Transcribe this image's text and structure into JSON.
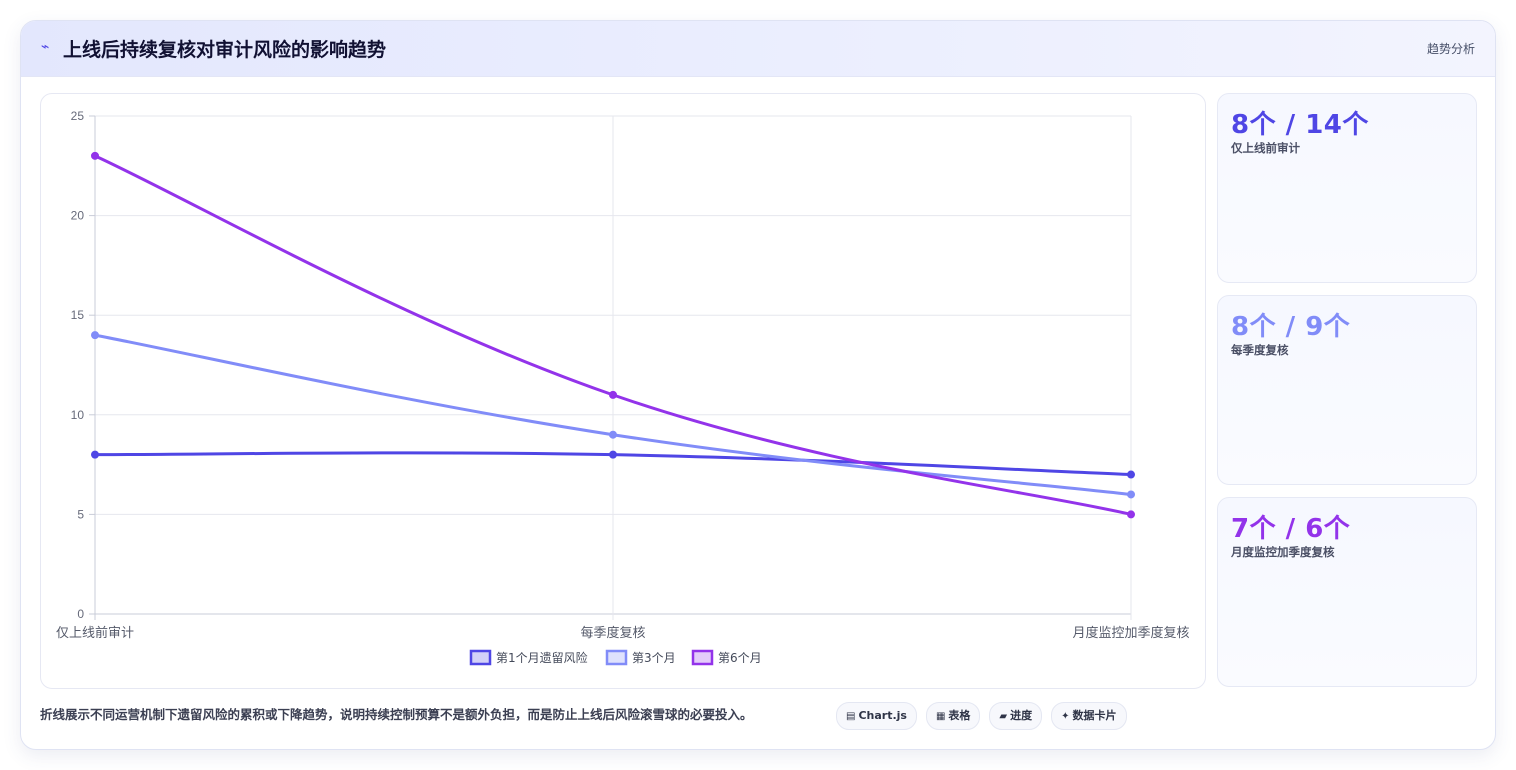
{
  "header": {
    "icon": "pulse-icon",
    "title": "上线后持续复核对审计风险的影响趋势",
    "tag": "趋势分析"
  },
  "chart_data": {
    "type": "line",
    "categories": [
      "仅上线前审计",
      "每季度复核",
      "月度监控加季度复核"
    ],
    "series": [
      {
        "name": "第1个月遗留风险",
        "values": [
          8,
          8,
          7
        ],
        "color": "#4f46e5"
      },
      {
        "name": "第3个月",
        "values": [
          14,
          9,
          6
        ],
        "color": "#818cf8"
      },
      {
        "name": "第6个月",
        "values": [
          23,
          11,
          5
        ],
        "color": "#9333ea"
      }
    ],
    "ylim": [
      0,
      25
    ],
    "yticks": [
      0,
      5,
      10,
      15,
      20,
      25
    ],
    "grid": true,
    "legend_position": "bottom"
  },
  "stats": [
    {
      "value": "8个 / 14个",
      "label": "仅上线前审计",
      "color": "#4f46e5"
    },
    {
      "value": "8个 / 9个",
      "label": "每季度复核",
      "color": "#818cf8"
    },
    {
      "value": "7个 / 6个",
      "label": "月度监控加季度复核",
      "color": "#9333ea"
    }
  ],
  "footer": {
    "note": "折线展示不同运营机制下遗留风险的累积或下降趋势，说明持续控制预算不是额外负担，而是防止上线后风险滚雪球的必要投入。",
    "chips": [
      {
        "icon": "chart-icon",
        "glyph": "▤",
        "label": "Chart.js"
      },
      {
        "icon": "table-icon",
        "glyph": "▦",
        "label": "表格"
      },
      {
        "icon": "progress-icon",
        "glyph": "▰",
        "label": "进度"
      },
      {
        "icon": "sparkle-icon",
        "glyph": "✦",
        "label": "数据卡片"
      }
    ]
  }
}
